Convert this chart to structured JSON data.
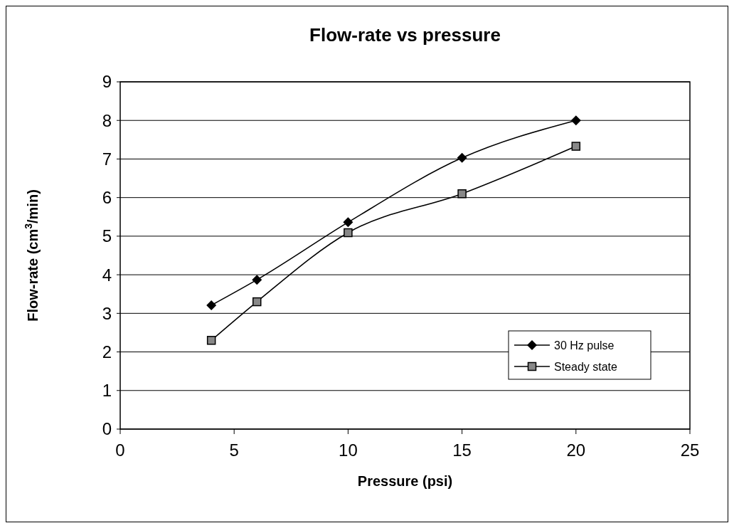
{
  "chart_data": {
    "type": "line",
    "title": "Flow-rate vs pressure",
    "xlabel": "Pressure (psi)",
    "ylabel": "Flow-rate (cm$^{3}$/min)",
    "x": [
      4,
      6,
      10,
      15,
      20
    ],
    "series": [
      {
        "name": "30 Hz pulse",
        "color": "#000000",
        "values": [
          3.21,
          3.87,
          5.36,
          7.03,
          8.0
        ],
        "marker": "diamond"
      },
      {
        "name": "Steady state",
        "color": "#000000",
        "values": [
          2.3,
          3.3,
          5.09,
          6.1,
          7.33
        ],
        "marker": "square"
      }
    ],
    "xlim": [
      0,
      25
    ],
    "xticks": [
      0,
      5,
      10,
      15,
      20,
      25
    ],
    "ylim": [
      0,
      9
    ],
    "yticks": [
      0,
      1,
      2,
      3,
      4,
      5,
      6,
      7,
      8,
      9
    ],
    "grid": "y",
    "legend": "bottom right",
    "line_style": "solid"
  }
}
